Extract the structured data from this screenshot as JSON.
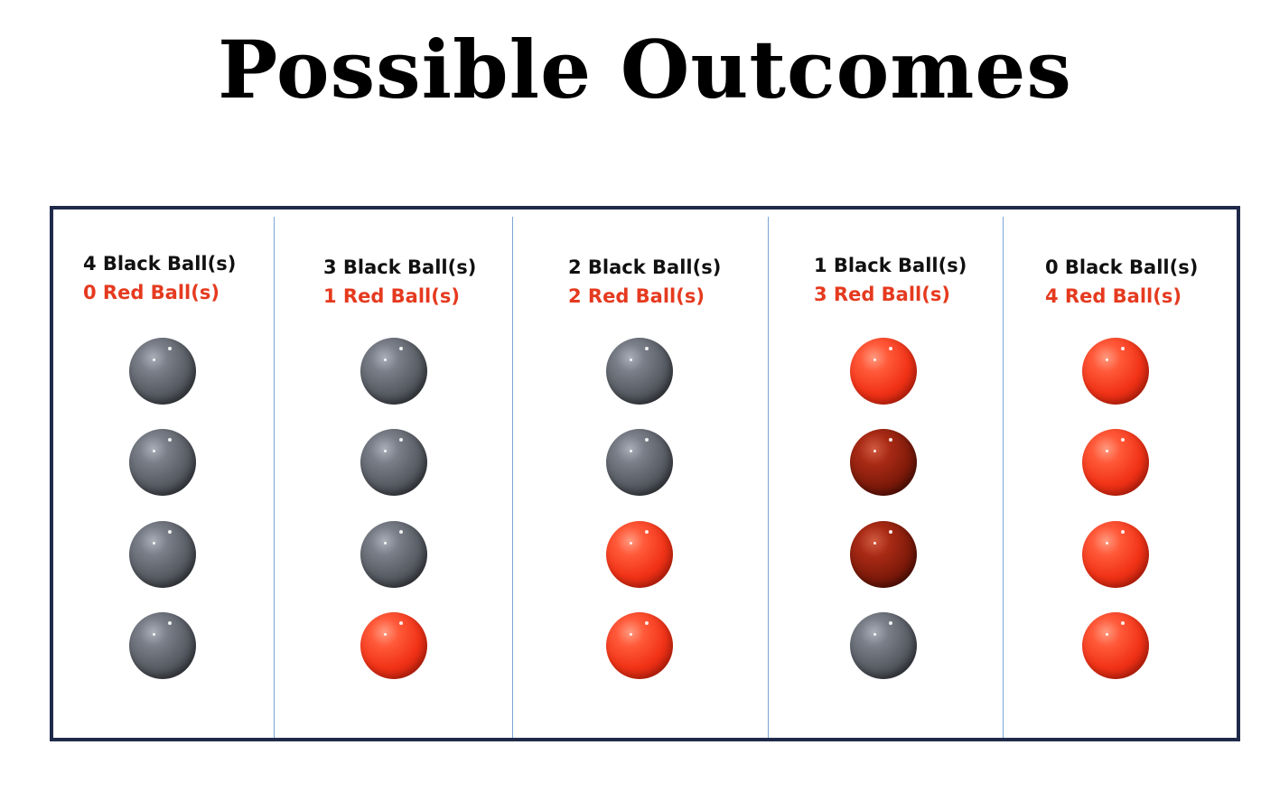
{
  "title": "Possible Outcomes",
  "colors": {
    "frame_border": "#1f2a4a",
    "divider": "#7aa6d6",
    "black_label": "#111111",
    "red_label": "#e53a1f",
    "black_ball": "#5a5e66",
    "red_ball": "#f23418",
    "dark_red_ball": "#7e1a0a"
  },
  "outcomes": [
    {
      "black_label": "4 Black Ball(s)",
      "red_label": "0 Red Ball(s)",
      "balls": [
        "black",
        "black",
        "black",
        "black"
      ]
    },
    {
      "black_label": "3 Black Ball(s)",
      "red_label": "1 Red Ball(s)",
      "balls": [
        "black",
        "black",
        "black",
        "red"
      ]
    },
    {
      "black_label": "2 Black Ball(s)",
      "red_label": "2 Red Ball(s)",
      "balls": [
        "black",
        "black",
        "red",
        "red"
      ]
    },
    {
      "black_label": "1 Black Ball(s)",
      "red_label": "3 Red Ball(s)",
      "balls": [
        "red",
        "darkred",
        "darkred",
        "black"
      ]
    },
    {
      "black_label": "0 Black Ball(s)",
      "red_label": "4 Red Ball(s)",
      "balls": [
        "red",
        "red",
        "red",
        "red"
      ]
    }
  ]
}
